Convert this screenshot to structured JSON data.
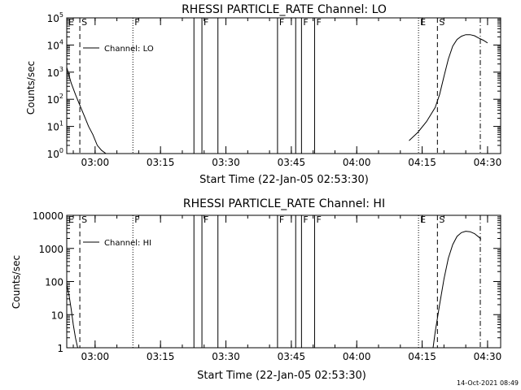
{
  "footer": {
    "timestamp": "14-Oct-2021 08:49"
  },
  "chart_data": [
    {
      "type": "line",
      "title": "RHESSI PARTICLE_RATE Channel: LO",
      "xlabel": "Start Time (22-Jan-05 02:53:30)",
      "ylabel": "Counts/sec",
      "yscale": "log",
      "ylim": [
        1,
        100000
      ],
      "xlim": [
        "02:53:30",
        "04:33:00"
      ],
      "x_tick_labels": [
        "03:00",
        "03:15",
        "03:30",
        "03:45",
        "04:00",
        "04:15",
        "04:30"
      ],
      "y_tick_labels": [
        "10^0",
        "10^1",
        "10^2",
        "10^3",
        "10^4",
        "10^5"
      ],
      "legend": {
        "label": "Channel: LO",
        "position": "top-left"
      },
      "x_times": [
        "02:53:30",
        "02:54:30",
        "02:55:30",
        "02:56:30",
        "02:57:30",
        "02:58:30",
        "02:59:30",
        "03:00:30",
        "03:01:30",
        "03:02:30",
        "04:12:00",
        "04:14:00",
        "04:16:00",
        "04:18:00",
        "04:19:00",
        "04:20:00",
        "04:21:00",
        "04:22:00",
        "04:23:00",
        "04:24:00",
        "04:25:00",
        "04:26:00",
        "04:27:00",
        "04:28:00",
        "04:29:00",
        "04:30:00"
      ],
      "values": [
        1500,
        400,
        150,
        60,
        25,
        10,
        5,
        2,
        1.3,
        1,
        3,
        6,
        15,
        50,
        150,
        700,
        3000,
        9000,
        16000,
        21000,
        24000,
        24000,
        22000,
        18000,
        15000,
        12000
      ],
      "markers": [
        {
          "label": "E",
          "time": "02:53:30",
          "style": "dotted"
        },
        {
          "label": "S",
          "time": "02:56:30",
          "style": "dashed"
        },
        {
          "label": "F",
          "time": "03:08:40",
          "style": "dotted"
        },
        {
          "label": "",
          "time": "03:22:40",
          "style": "solid"
        },
        {
          "label": "F",
          "time": "03:24:30",
          "style": "solid"
        },
        {
          "label": "",
          "time": "03:28:10",
          "style": "solid"
        },
        {
          "label": "F",
          "time": "03:41:50",
          "style": "solid"
        },
        {
          "label": "",
          "time": "03:46:00",
          "style": "solid"
        },
        {
          "label": "F",
          "time": "03:47:20",
          "style": "solid"
        },
        {
          "label": "F",
          "time": "03:50:20",
          "style": "solid"
        },
        {
          "label": "E",
          "time": "04:14:10",
          "style": "dotted"
        },
        {
          "label": "S",
          "time": "04:18:30",
          "style": "dashed"
        },
        {
          "label": "",
          "time": "04:28:20",
          "style": "dashdot"
        }
      ]
    },
    {
      "type": "line",
      "title": "RHESSI PARTICLE_RATE Channel: HI",
      "xlabel": "Start Time (22-Jan-05 02:53:30)",
      "ylabel": "Counts/sec",
      "yscale": "log",
      "ylim": [
        1,
        10000
      ],
      "xlim": [
        "02:53:30",
        "04:33:00"
      ],
      "x_tick_labels": [
        "03:00",
        "03:15",
        "03:30",
        "03:45",
        "04:00",
        "04:15",
        "04:30"
      ],
      "y_tick_labels": [
        "1",
        "10",
        "100",
        "1000",
        "10000"
      ],
      "legend": {
        "label": "Channel: HI",
        "position": "top-left"
      },
      "x_times": [
        "02:53:30",
        "02:54:00",
        "02:54:30",
        "02:55:00",
        "02:55:30",
        "02:56:00",
        "04:17:30",
        "04:18:00",
        "04:19:00",
        "04:20:00",
        "04:21:00",
        "04:22:00",
        "04:23:00",
        "04:24:00",
        "04:25:00",
        "04:26:00",
        "04:27:00",
        "04:28:00",
        "04:28:30"
      ],
      "values": [
        80,
        40,
        15,
        5,
        2,
        1,
        1,
        3,
        20,
        120,
        500,
        1300,
        2300,
        3000,
        3300,
        3200,
        2800,
        2200,
        1900
      ],
      "markers": [
        {
          "label": "E",
          "time": "02:53:30",
          "style": "dotted"
        },
        {
          "label": "S",
          "time": "02:56:30",
          "style": "dashed"
        },
        {
          "label": "F",
          "time": "03:08:40",
          "style": "dotted"
        },
        {
          "label": "",
          "time": "03:22:40",
          "style": "solid"
        },
        {
          "label": "F",
          "time": "03:24:30",
          "style": "solid"
        },
        {
          "label": "",
          "time": "03:28:10",
          "style": "solid"
        },
        {
          "label": "F",
          "time": "03:41:50",
          "style": "solid"
        },
        {
          "label": "",
          "time": "03:46:00",
          "style": "solid"
        },
        {
          "label": "F",
          "time": "03:47:20",
          "style": "solid"
        },
        {
          "label": "F",
          "time": "03:50:20",
          "style": "solid"
        },
        {
          "label": "E",
          "time": "04:14:10",
          "style": "dotted"
        },
        {
          "label": "S",
          "time": "04:18:30",
          "style": "dashed"
        },
        {
          "label": "",
          "time": "04:28:20",
          "style": "dashdot"
        }
      ]
    }
  ]
}
